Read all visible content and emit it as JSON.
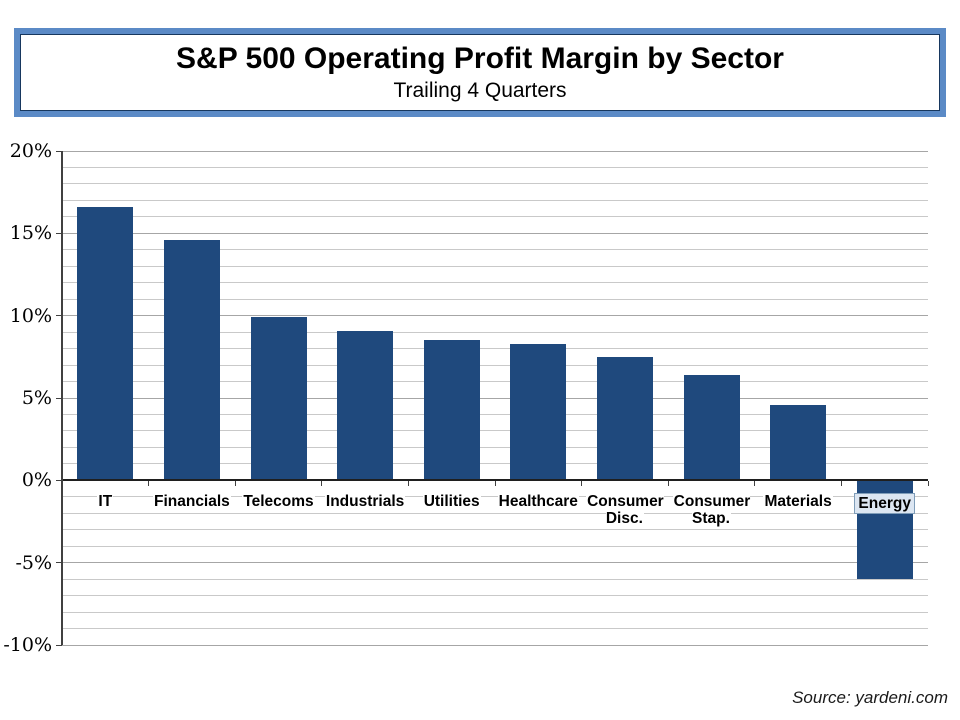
{
  "header": {
    "border_color": "#5B8AC6",
    "inner_border_color": "#17375E"
  },
  "chart_data": {
    "type": "bar",
    "title": "S&P 500 Operating Profit Margin by Sector",
    "subtitle": "Trailing 4 Quarters",
    "categories": [
      "IT",
      "Financials",
      "Telecoms",
      "Industrials",
      "Utilities",
      "Healthcare",
      "Consumer Disc.",
      "Consumer Stap.",
      "Materials",
      "Energy"
    ],
    "values": [
      16.6,
      14.6,
      9.9,
      9.1,
      8.5,
      8.3,
      7.5,
      6.4,
      4.6,
      -6.0
    ],
    "bar_color": "#1F497D",
    "xlabel": "",
    "ylabel": "",
    "ylim": [
      -10,
      20
    ],
    "y_major_step": 5,
    "y_minor_step": 1,
    "y_tick_labels": [
      "20%",
      "15%",
      "10%",
      "5%",
      "0%",
      "-5%",
      "-10%"
    ],
    "grid": true,
    "legend": "none",
    "gridline_minor_color": "#C9C9C9",
    "gridline_major_color": "#A6A6A6",
    "highlighted_category": "Energy",
    "highlight_box": {
      "fill": "#DCE6F2",
      "border": "#7F9DB9"
    },
    "source": "Source: yardeni.com"
  }
}
